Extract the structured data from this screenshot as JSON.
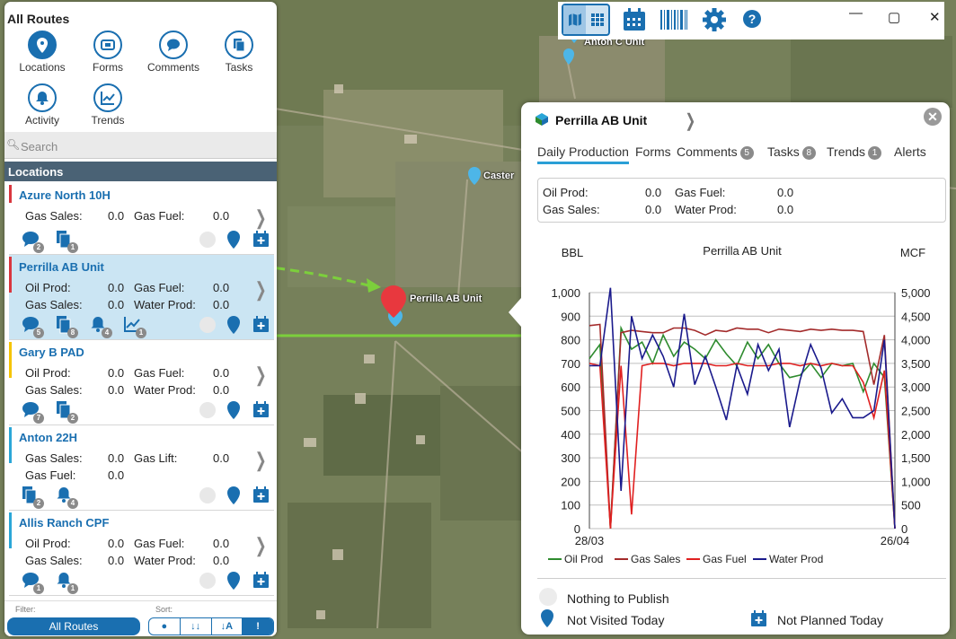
{
  "sidebar": {
    "title": "All Routes",
    "nav": [
      {
        "label": "Locations",
        "icon": "location-pin-icon"
      },
      {
        "label": "Forms",
        "icon": "form-icon"
      },
      {
        "label": "Comments",
        "icon": "comment-icon"
      },
      {
        "label": "Tasks",
        "icon": "tasks-icon"
      },
      {
        "label": "Activity",
        "icon": "bell-icon"
      },
      {
        "label": "Trends",
        "icon": "trend-chart-icon"
      }
    ],
    "search_placeholder": "Search",
    "section_header": "Locations",
    "cards": [
      {
        "name": "Azure North 10H",
        "status_color": "#d9363e",
        "fields": [
          [
            "Gas Sales:",
            "0.0",
            "Gas Fuel:",
            "0.0"
          ]
        ],
        "badges": [
          {
            "icon": "comment-icon",
            "count": "2"
          },
          {
            "icon": "tasks-icon",
            "count": "1"
          }
        ]
      },
      {
        "name": "Perrilla AB Unit",
        "status_color": "#d9363e",
        "selected": true,
        "fields": [
          [
            "Oil Prod:",
            "0.0",
            "Gas Fuel:",
            "0.0"
          ],
          [
            "Gas Sales:",
            "0.0",
            "Water Prod:",
            "0.0"
          ]
        ],
        "badges": [
          {
            "icon": "comment-icon",
            "count": "5"
          },
          {
            "icon": "tasks-icon",
            "count": "8"
          },
          {
            "icon": "bell-icon",
            "count": "4"
          },
          {
            "icon": "trend-chart-icon",
            "count": "1"
          }
        ]
      },
      {
        "name": "Gary B PAD",
        "status_color": "#f5c400",
        "fields": [
          [
            "Oil Prod:",
            "0.0",
            "Gas Fuel:",
            "0.0"
          ],
          [
            "Gas Sales:",
            "0.0",
            "Water Prod:",
            "0.0"
          ]
        ],
        "badges": [
          {
            "icon": "comment-icon",
            "count": "7"
          },
          {
            "icon": "tasks-icon",
            "count": "2"
          }
        ]
      },
      {
        "name": "Anton 22H",
        "status_color": "#2aa6d8",
        "fields": [
          [
            "Gas Sales:",
            "0.0",
            "Gas Lift:",
            "0.0"
          ],
          [
            "Gas Fuel:",
            "0.0",
            "",
            ""
          ]
        ],
        "badges": [
          {
            "icon": "tasks-icon",
            "count": "2"
          },
          {
            "icon": "bell-icon",
            "count": "4"
          }
        ]
      },
      {
        "name": "Allis Ranch CPF",
        "status_color": "#2aa6d8",
        "fields": [
          [
            "Oil Prod:",
            "0.0",
            "Gas Fuel:",
            "0.0"
          ],
          [
            "Gas Sales:",
            "0.0",
            "Water Prod:",
            "0.0"
          ]
        ],
        "badges": [
          {
            "icon": "comment-icon",
            "count": "1"
          },
          {
            "icon": "bell-icon",
            "count": "1"
          }
        ]
      }
    ],
    "filter_label": "Filter:",
    "filter_value": "All Routes",
    "sort_label": "Sort:",
    "sort_buttons": [
      "●",
      "↓↓",
      "↓A",
      "!"
    ]
  },
  "map": {
    "labels": [
      "Anton C Unit",
      "Caster",
      "Perrilla AB Unit"
    ]
  },
  "detail": {
    "title": "Perrilla AB Unit",
    "tabs": [
      {
        "label": "Daily Production",
        "badge": ""
      },
      {
        "label": "Forms",
        "badge": ""
      },
      {
        "label": "Comments",
        "badge": "5"
      },
      {
        "label": "Tasks",
        "badge": "8"
      },
      {
        "label": "Trends",
        "badge": "1"
      },
      {
        "label": "Alerts",
        "badge": ""
      }
    ],
    "summary": {
      "oil_prod_label": "Oil Prod:",
      "oil_prod": "0.0",
      "gas_fuel_label": "Gas Fuel:",
      "gas_fuel": "0.0",
      "gas_sales_label": "Gas Sales:",
      "gas_sales": "0.0",
      "water_prod_label": "Water Prod:",
      "water_prod": "0.0"
    },
    "key": {
      "publish": "Nothing to Publish",
      "visited": "Not Visited Today",
      "planned": "Not Planned Today"
    }
  },
  "chart_data": {
    "type": "line",
    "title": "Perrilla AB Unit",
    "ylabel_left": "BBL",
    "ylabel_right": "MCF",
    "x_labels": [
      "28/03",
      "26/04"
    ],
    "ylim_left": [
      0,
      1000
    ],
    "ylim_right": [
      0,
      5000
    ],
    "left_ticks": [
      "0",
      "100",
      "200",
      "300",
      "400",
      "500",
      "600",
      "700",
      "800",
      "900",
      "1,000"
    ],
    "right_ticks": [
      "0",
      "500",
      "1,000",
      "1,500",
      "2,000",
      "2,500",
      "3,000",
      "3,500",
      "4,000",
      "4,500",
      "5,000"
    ],
    "grid": true,
    "legend_position": "bottom",
    "colors": {
      "Oil Prod": "#2e8b2e",
      "Gas Sales": "#a32b2b",
      "Gas Fuel": "#e02020",
      "Water Prod": "#1a1a8c"
    },
    "series": [
      {
        "name": "Oil Prod",
        "axis": "left",
        "values": [
          720,
          780,
          0,
          850,
          760,
          790,
          700,
          820,
          730,
          790,
          760,
          720,
          800,
          740,
          690,
          790,
          720,
          780,
          700,
          640,
          650,
          700,
          640,
          700,
          690,
          700,
          580,
          700,
          640,
          0
        ]
      },
      {
        "name": "Gas Sales",
        "axis": "left",
        "values": [
          860,
          865,
          0,
          830,
          840,
          835,
          830,
          830,
          850,
          850,
          840,
          820,
          840,
          835,
          850,
          845,
          845,
          830,
          845,
          840,
          835,
          845,
          840,
          845,
          840,
          840,
          835,
          610,
          820,
          0
        ]
      },
      {
        "name": "Gas Fuel",
        "axis": "left",
        "values": [
          700,
          690,
          0,
          690,
          60,
          690,
          700,
          700,
          690,
          700,
          700,
          700,
          690,
          690,
          700,
          690,
          690,
          690,
          700,
          700,
          690,
          700,
          690,
          700,
          690,
          690,
          620,
          470,
          670,
          0
        ]
      },
      {
        "name": "Water Prod",
        "axis": "left",
        "values": [
          690,
          690,
          1020,
          160,
          900,
          720,
          820,
          730,
          600,
          910,
          610,
          730,
          600,
          460,
          690,
          570,
          780,
          670,
          760,
          430,
          630,
          780,
          680,
          490,
          550,
          470,
          470,
          500,
          800,
          0
        ]
      }
    ]
  }
}
